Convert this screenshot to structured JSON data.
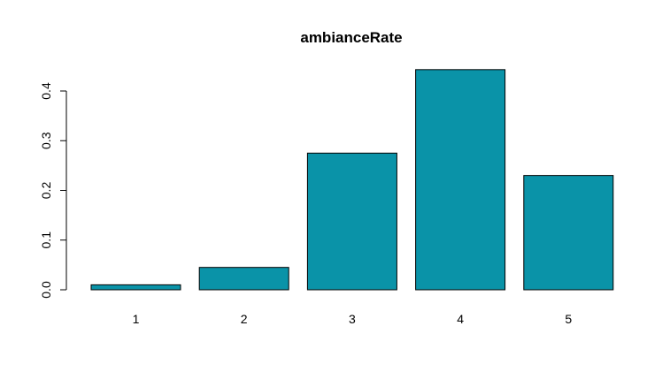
{
  "chart_data": {
    "type": "bar",
    "title": "ambianceRate",
    "xlabel": "",
    "ylabel": "",
    "categories": [
      "1",
      "2",
      "3",
      "4",
      "5"
    ],
    "values": [
      0.01,
      0.045,
      0.275,
      0.443,
      0.23
    ],
    "ylim": [
      0,
      0.443
    ],
    "yticks": [
      "0.0",
      "0.1",
      "0.2",
      "0.3",
      "0.4"
    ],
    "bar_color": "#0A93A8",
    "grid": false,
    "legend": "none"
  }
}
